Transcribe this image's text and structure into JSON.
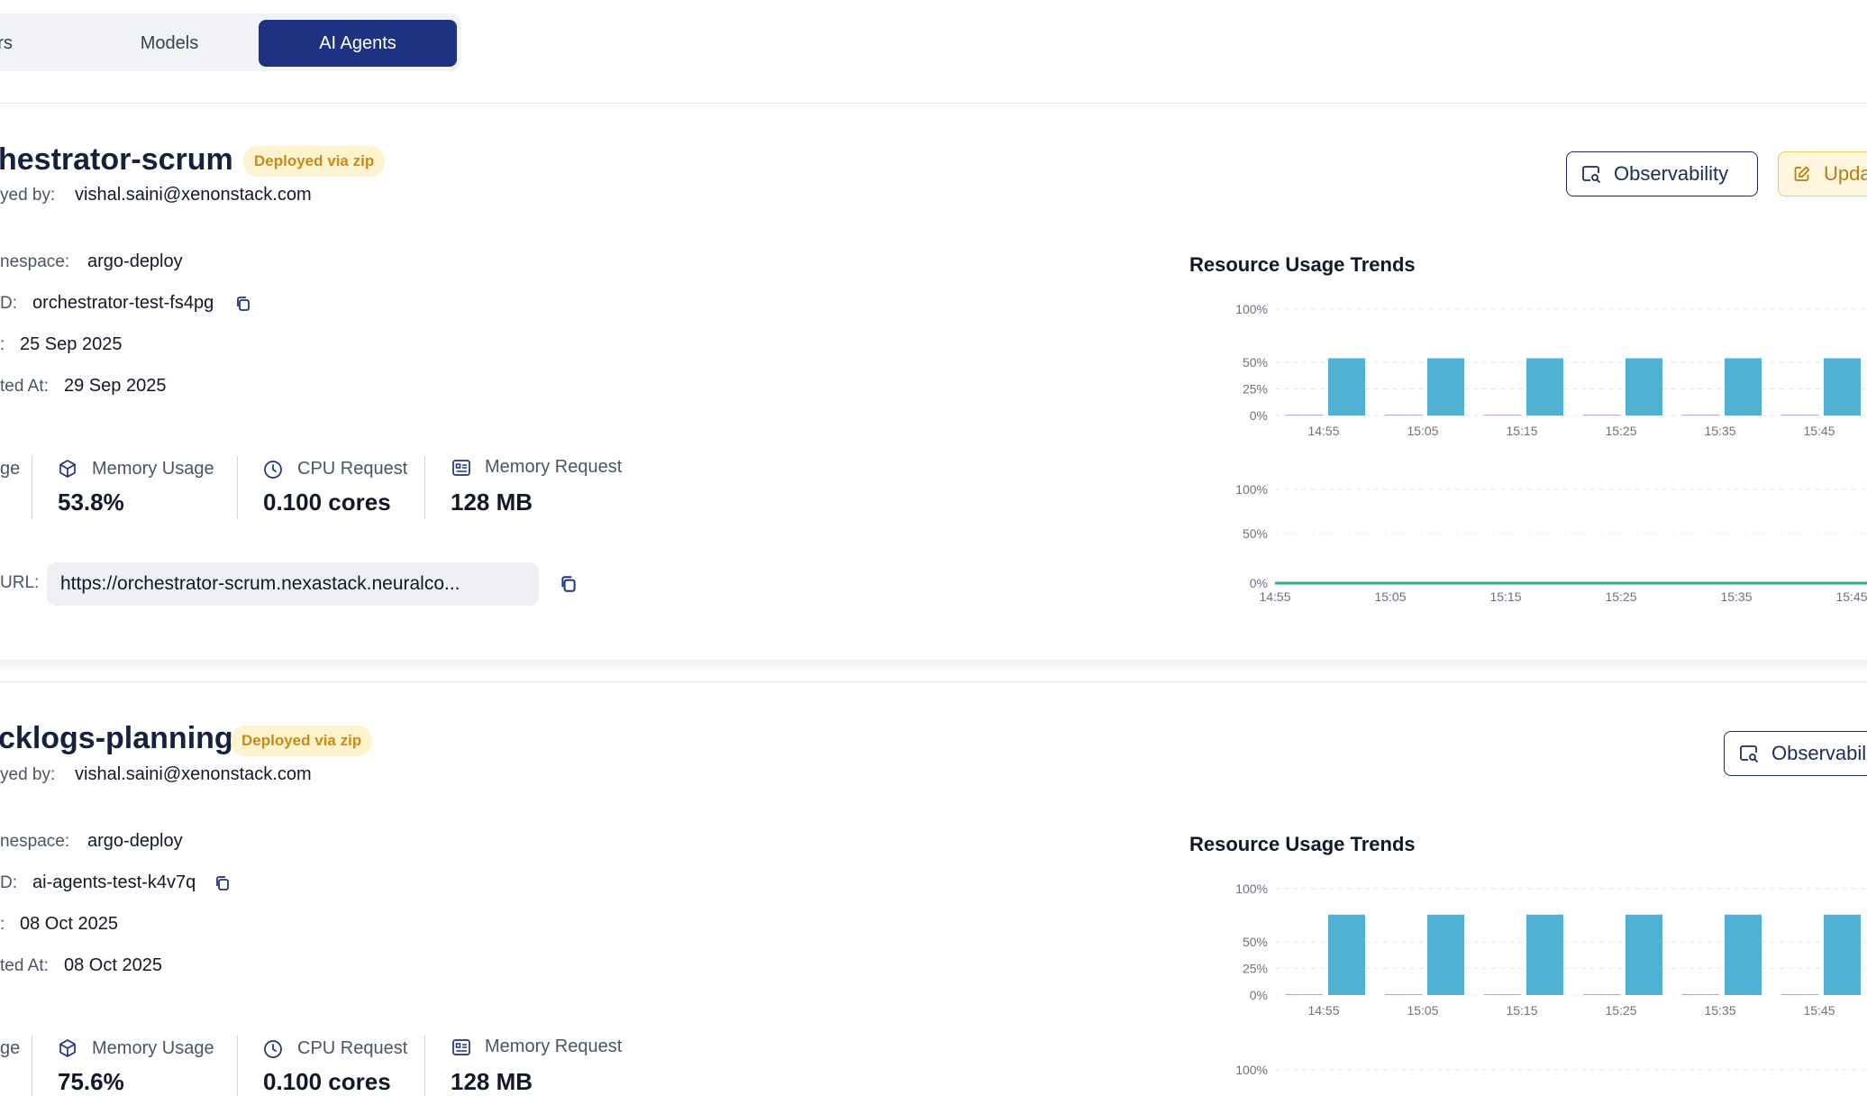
{
  "tabs": [
    {
      "label": "ers",
      "active": false
    },
    {
      "label": "Models",
      "active": false
    },
    {
      "label": "AI Agents",
      "active": true
    }
  ],
  "agents": [
    {
      "name": "hestrator-scrum",
      "badge": "Deployed via zip",
      "deployed_by_label": "yed by:",
      "deployed_by": "vishal.saini@xenonstack.com",
      "namespace_label": "nespace:",
      "namespace": "argo-deploy",
      "id_label": "D:",
      "id": "orchestrator-test-fs4pg",
      "created_label": ":",
      "created": "25 Sep 2025",
      "updated_label": "ted At:",
      "updated": "29 Sep 2025",
      "metrics": [
        {
          "label": "ge",
          "value": "",
          "icon": "cpu-usage-icon"
        },
        {
          "label": "Memory Usage",
          "value": "53.8%",
          "icon": "box-icon"
        },
        {
          "label": "CPU Request",
          "value": "0.100 cores",
          "icon": "clock-icon"
        },
        {
          "label": "Memory Request",
          "value": "128 MB",
          "icon": "memory-card-icon"
        }
      ],
      "url_label": "URL:",
      "url": "https://orchestrator-scrum.nexastack.neuralco...",
      "buttons": {
        "observability": "Observability",
        "update": "Upda"
      }
    },
    {
      "name": "cklogs-planning",
      "badge": "Deployed via zip",
      "deployed_by_label": "yed by:",
      "deployed_by": "vishal.saini@xenonstack.com",
      "namespace_label": "nespace:",
      "namespace": "argo-deploy",
      "id_label": "D:",
      "id": "ai-agents-test-k4v7q",
      "created_label": ":",
      "created": "08 Oct 2025",
      "updated_label": "ted At:",
      "updated": "08 Oct 2025",
      "metrics": [
        {
          "label": "ge",
          "value": "",
          "icon": "cpu-usage-icon"
        },
        {
          "label": "Memory Usage",
          "value": "75.6%",
          "icon": "box-icon"
        },
        {
          "label": "CPU Request",
          "value": "0.100 cores",
          "icon": "clock-icon"
        },
        {
          "label": "Memory Request",
          "value": "128 MB",
          "icon": "memory-card-icon"
        }
      ],
      "buttons": {
        "observability": "Observabili"
      }
    }
  ],
  "chart_data": [
    {
      "type": "bar",
      "title": "Resource Usage Trends",
      "categories": [
        "14:55",
        "15:05",
        "15:15",
        "15:25",
        "15:35",
        "15:45"
      ],
      "y_ticks": [
        "0%",
        "25%",
        "50%",
        "100%"
      ],
      "series": [
        {
          "values": [
            0.5,
            0.5,
            0.5,
            0.5,
            0.5,
            0.5
          ],
          "color": "#8b7fd9"
        },
        {
          "values": [
            53.8,
            53.8,
            53.8,
            53.8,
            53.8,
            53.8
          ],
          "color": "#4fb1d4"
        }
      ]
    },
    {
      "type": "line",
      "categories": [
        "14:55",
        "15:05",
        "15:15",
        "15:25",
        "15:35",
        "15:45"
      ],
      "y_ticks": [
        "0%",
        "50%",
        "100%"
      ],
      "series": [
        {
          "values": [
            0,
            0,
            0,
            0,
            0,
            0
          ],
          "color": "#2fb07c"
        }
      ]
    },
    {
      "type": "bar",
      "title": "Resource Usage Trends",
      "categories": [
        "14:55",
        "15:05",
        "15:15",
        "15:25",
        "15:35",
        "15:45"
      ],
      "y_ticks": [
        "0%",
        "25%",
        "50%",
        "100%"
      ],
      "series": [
        {
          "values": [
            0.5,
            0.5,
            0.5,
            0.5,
            0.5,
            0.5
          ],
          "color": "#8b7fd9"
        },
        {
          "values": [
            75.6,
            75.6,
            75.6,
            75.6,
            75.6,
            75.6
          ],
          "color": "#4fb1d4"
        }
      ]
    },
    {
      "type": "line",
      "y_ticks": [
        "100%"
      ],
      "series": []
    }
  ]
}
